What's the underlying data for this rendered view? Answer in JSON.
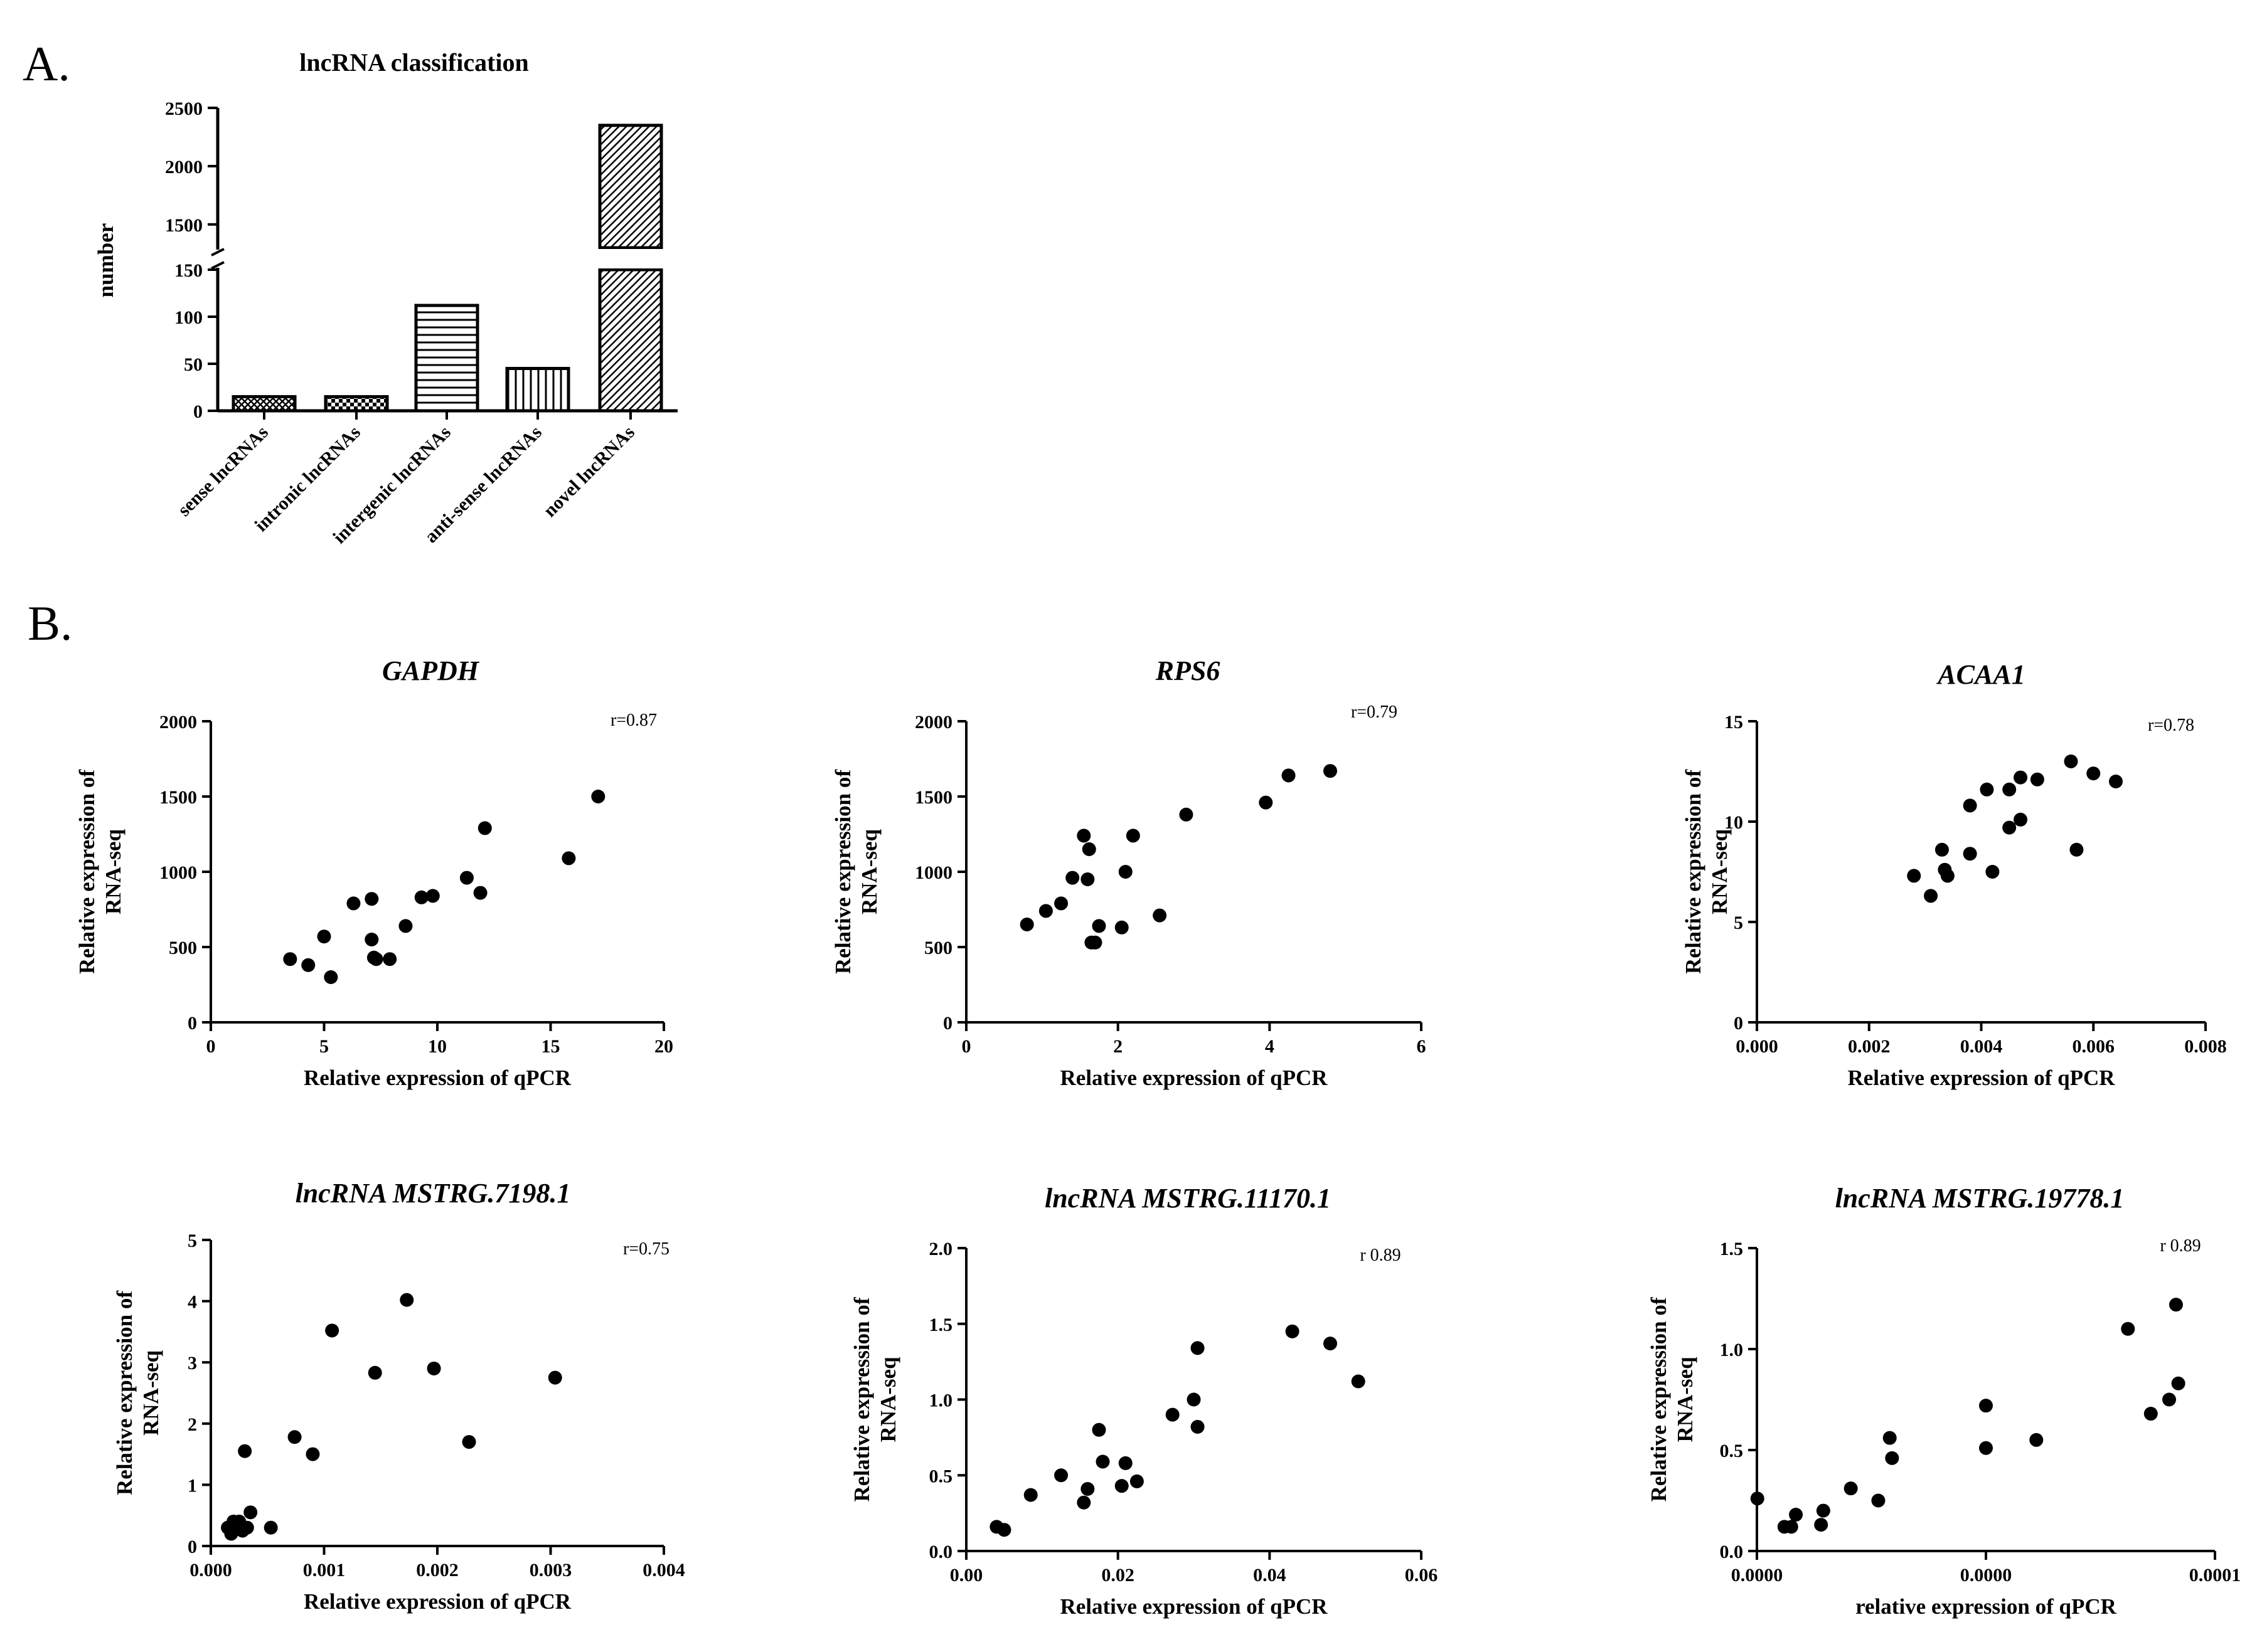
{
  "panel_labels": {
    "a": "A.",
    "b": "B."
  },
  "chart_data": [
    {
      "type": "bar",
      "title": "lncRNA classification",
      "xlabel": "",
      "ylabel": "number",
      "categories": [
        "sense lncRNAs",
        "intronic lncRNAs",
        "intergenic lncRNAs",
        "anti-sense lncRNAs",
        "novel lncRNAs"
      ],
      "values": [
        15,
        15,
        112,
        45,
        2350
      ],
      "patterns": [
        "crosshatch",
        "checker",
        "horizontal",
        "vertical",
        "diagonal"
      ],
      "axis_break": {
        "lower_range": [
          0,
          150
        ],
        "upper_range": [
          1300,
          2500
        ]
      },
      "lower_ticks": [
        "0",
        "50",
        "100",
        "150"
      ],
      "upper_ticks": [
        "1500",
        "2000",
        "2500"
      ]
    },
    {
      "type": "scatter",
      "title": "GAPDH",
      "xlabel": "Relative expression of qPCR",
      "ylabel_line1": "Relative expression of",
      "ylabel_line2": "RNA-seq",
      "xlim": [
        0,
        20
      ],
      "ylim": [
        0,
        2000
      ],
      "xticks": [
        0,
        5,
        10,
        15,
        20
      ],
      "xtick_labels": [
        "0",
        "5",
        "10",
        "15",
        "20"
      ],
      "yticks": [
        0,
        500,
        1000,
        1500,
        2000
      ],
      "ytick_labels": [
        "0",
        "500",
        "1000",
        "1500",
        "2000"
      ],
      "r_label": "r=0.87",
      "points": [
        [
          3.5,
          420
        ],
        [
          4.3,
          380
        ],
        [
          5.0,
          570
        ],
        [
          5.3,
          300
        ],
        [
          6.3,
          790
        ],
        [
          7.1,
          550
        ],
        [
          7.1,
          820
        ],
        [
          7.2,
          430
        ],
        [
          7.3,
          420
        ],
        [
          7.9,
          420
        ],
        [
          8.6,
          640
        ],
        [
          9.3,
          830
        ],
        [
          9.8,
          840
        ],
        [
          11.3,
          960
        ],
        [
          11.9,
          860
        ],
        [
          12.1,
          1290
        ],
        [
          15.8,
          1090
        ],
        [
          17.1,
          1500
        ]
      ]
    },
    {
      "type": "scatter",
      "title": "RPS6",
      "xlabel": "Relative expression of qPCR",
      "ylabel_line1": "Relative expression of",
      "ylabel_line2": "RNA-seq",
      "xlim": [
        0,
        6
      ],
      "ylim": [
        0,
        2000
      ],
      "xticks": [
        0,
        2,
        4,
        6
      ],
      "xtick_labels": [
        "0",
        "2",
        "4",
        "6"
      ],
      "yticks": [
        0,
        500,
        1000,
        1500,
        2000
      ],
      "ytick_labels": [
        "0",
        "500",
        "1000",
        "1500",
        "2000"
      ],
      "r_label": "r=0.79",
      "points": [
        [
          0.8,
          650
        ],
        [
          1.05,
          740
        ],
        [
          1.25,
          790
        ],
        [
          1.4,
          960
        ],
        [
          1.55,
          1240
        ],
        [
          1.6,
          950
        ],
        [
          1.62,
          1150
        ],
        [
          1.65,
          530
        ],
        [
          1.7,
          530
        ],
        [
          1.75,
          640
        ],
        [
          2.05,
          630
        ],
        [
          2.1,
          1000
        ],
        [
          2.2,
          1240
        ],
        [
          2.55,
          710
        ],
        [
          2.9,
          1380
        ],
        [
          3.95,
          1460
        ],
        [
          4.25,
          1640
        ],
        [
          4.8,
          1670
        ]
      ]
    },
    {
      "type": "scatter",
      "title": "ACAA1",
      "xlabel": "Relative expression of qPCR",
      "ylabel_line1": "Relative expression of",
      "ylabel_line2": "RNA-seq",
      "xlim": [
        0,
        0.008
      ],
      "ylim": [
        0,
        15
      ],
      "xticks": [
        0,
        0.002,
        0.004,
        0.006,
        0.008
      ],
      "xtick_labels": [
        "0.000",
        "0.002",
        "0.004",
        "0.006",
        "0.008"
      ],
      "yticks": [
        0,
        5,
        10,
        15
      ],
      "ytick_labels": [
        "0",
        "5",
        "10",
        "15"
      ],
      "r_label": "r=0.78",
      "points": [
        [
          0.0028,
          7.3
        ],
        [
          0.0031,
          6.3
        ],
        [
          0.0033,
          8.6
        ],
        [
          0.00335,
          7.6
        ],
        [
          0.0034,
          7.3
        ],
        [
          0.0038,
          8.4
        ],
        [
          0.0038,
          10.8
        ],
        [
          0.0041,
          11.6
        ],
        [
          0.0042,
          7.5
        ],
        [
          0.0045,
          9.7
        ],
        [
          0.0045,
          11.6
        ],
        [
          0.0047,
          10.1
        ],
        [
          0.0047,
          12.2
        ],
        [
          0.005,
          12.1
        ],
        [
          0.0056,
          13.0
        ],
        [
          0.0057,
          8.6
        ],
        [
          0.006,
          12.4
        ],
        [
          0.0064,
          12.0
        ]
      ]
    },
    {
      "type": "scatter",
      "title": "lncRNA MSTRG.7198.1",
      "xlabel": "Relative expression of qPCR",
      "ylabel_line1": "Relative expression of",
      "ylabel_line2": "RNA-seq",
      "xlim": [
        0,
        0.004
      ],
      "ylim": [
        0,
        5
      ],
      "xticks": [
        0,
        0.001,
        0.002,
        0.003,
        0.004
      ],
      "xtick_labels": [
        "0.000",
        "0.001",
        "0.002",
        "0.003",
        "0.004"
      ],
      "yticks": [
        0,
        1,
        2,
        3,
        4,
        5
      ],
      "ytick_labels": [
        "0",
        "1",
        "2",
        "3",
        "4",
        "5"
      ],
      "r_label": "r=0.75",
      "points": [
        [
          0.00015,
          0.3
        ],
        [
          0.00018,
          0.2
        ],
        [
          0.0002,
          0.4
        ],
        [
          0.00022,
          0.35
        ],
        [
          0.00025,
          0.4
        ],
        [
          0.00028,
          0.25
        ],
        [
          0.0003,
          1.55
        ],
        [
          0.00032,
          0.3
        ],
        [
          0.00035,
          0.55
        ],
        [
          0.00053,
          0.3
        ],
        [
          0.00074,
          1.78
        ],
        [
          0.0009,
          1.5
        ],
        [
          0.00107,
          3.52
        ],
        [
          0.00145,
          2.83
        ],
        [
          0.00173,
          4.02
        ],
        [
          0.00197,
          2.9
        ],
        [
          0.00228,
          1.7
        ],
        [
          0.00304,
          2.75
        ]
      ]
    },
    {
      "type": "scatter",
      "title": "lncRNA MSTRG.11170.1",
      "xlabel": "Relative expression of qPCR",
      "ylabel_line1": "Relative expression of",
      "ylabel_line2": "RNA-seq",
      "xlim": [
        0,
        0.06
      ],
      "ylim": [
        0,
        2.0
      ],
      "xticks": [
        0,
        0.02,
        0.04,
        0.06
      ],
      "xtick_labels": [
        "0.00",
        "0.02",
        "0.04",
        "0.06"
      ],
      "yticks": [
        0,
        0.5,
        1.0,
        1.5,
        2.0
      ],
      "ytick_labels": [
        "0.0",
        "0.5",
        "1.0",
        "1.5",
        "2.0"
      ],
      "r_label": "r 0.89",
      "points": [
        [
          0.004,
          0.16
        ],
        [
          0.005,
          0.14
        ],
        [
          0.0085,
          0.37
        ],
        [
          0.0125,
          0.5
        ],
        [
          0.0155,
          0.32
        ],
        [
          0.016,
          0.41
        ],
        [
          0.0175,
          0.8
        ],
        [
          0.018,
          0.59
        ],
        [
          0.0205,
          0.43
        ],
        [
          0.021,
          0.58
        ],
        [
          0.0225,
          0.46
        ],
        [
          0.0272,
          0.9
        ],
        [
          0.03,
          1.0
        ],
        [
          0.0305,
          1.34
        ],
        [
          0.0305,
          0.82
        ],
        [
          0.043,
          1.45
        ],
        [
          0.048,
          1.37
        ],
        [
          0.0517,
          1.12
        ]
      ]
    },
    {
      "type": "scatter",
      "title": "lncRNA MSTRG.19778.1",
      "xlabel": "relative expression of qPCR",
      "ylabel_line1": "Relative expression of",
      "ylabel_line2": "RNA-seq",
      "xlim": [
        0,
        0.0001
      ],
      "ylim": [
        0,
        1.5
      ],
      "xticks": [
        0,
        5e-05,
        0.0001
      ],
      "xtick_labels": [
        "0.0000",
        "0.0000",
        "0.0001"
      ],
      "yticks": [
        0,
        0.5,
        1.0,
        1.5
      ],
      "ytick_labels": [
        "0.0",
        "0.5",
        "1.0",
        "1.5"
      ],
      "r_label": "r 0.89",
      "points": [
        [
          1e-07,
          0.26
        ],
        [
          6e-06,
          0.12
        ],
        [
          7.5e-06,
          0.12
        ],
        [
          8.5e-06,
          0.18
        ],
        [
          1.4e-05,
          0.13
        ],
        [
          1.45e-05,
          0.2
        ],
        [
          2.05e-05,
          0.31
        ],
        [
          2.65e-05,
          0.25
        ],
        [
          2.9e-05,
          0.56
        ],
        [
          2.95e-05,
          0.46
        ],
        [
          5e-05,
          0.72
        ],
        [
          5e-05,
          0.51
        ],
        [
          6.1e-05,
          0.55
        ],
        [
          8.1e-05,
          1.1
        ],
        [
          8.6e-05,
          0.68
        ],
        [
          9e-05,
          0.75
        ],
        [
          9.15e-05,
          1.22
        ],
        [
          9.2e-05,
          0.83
        ]
      ]
    }
  ]
}
